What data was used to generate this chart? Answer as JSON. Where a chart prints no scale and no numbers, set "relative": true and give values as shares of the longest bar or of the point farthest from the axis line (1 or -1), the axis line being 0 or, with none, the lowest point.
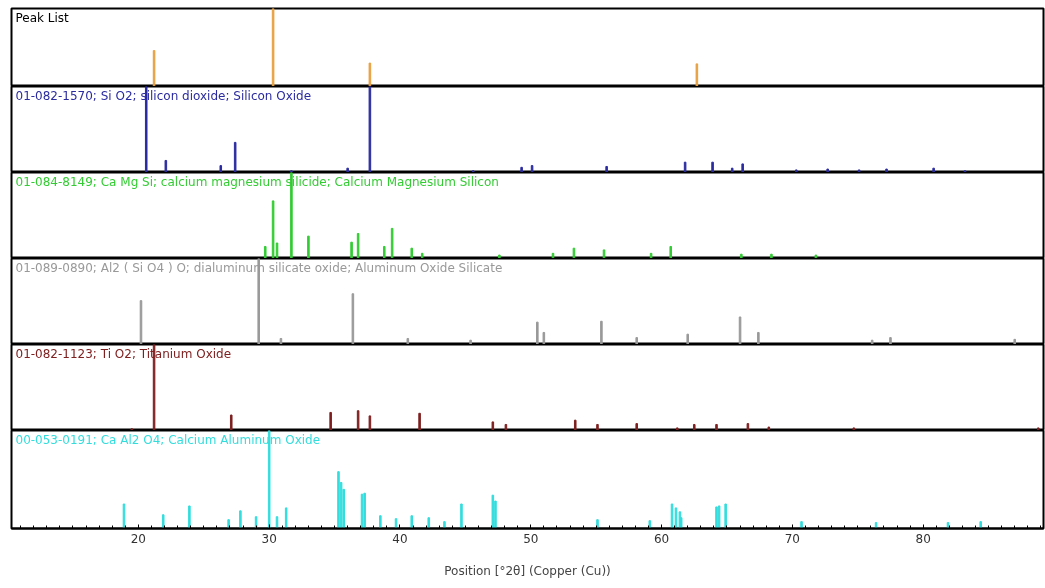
{
  "chart_data": [
    {
      "type": "bar",
      "title": "Peak List",
      "relative": true,
      "xlim": [
        10.3,
        89.2
      ],
      "xticks": [
        20,
        30,
        40,
        50,
        60,
        70,
        80
      ],
      "tick_labels": false,
      "x": [
        21.2,
        30.3,
        37.7,
        62.7
      ],
      "series": [
        {
          "color": "#e8a040",
          "values": [
            0.46,
            1,
            0.3,
            0.29
          ]
        }
      ]
    },
    {
      "type": "bar",
      "title": "01-082-1570; Si O2; silicon dioxide; Silicon Oxide",
      "relative": true,
      "xlim": [
        10.3,
        89.2
      ],
      "xticks": [
        20,
        30,
        40,
        50,
        60,
        70,
        80
      ],
      "tick_labels": false,
      "x": [
        20.6,
        22.1,
        26.3,
        27.4,
        31.7,
        36.0,
        37.7,
        45.6,
        49.3,
        50.1,
        55.8,
        61.8,
        63.9,
        65.4,
        66.2,
        70.3,
        72.7,
        75.1,
        77.2,
        80.8,
        83.2
      ],
      "series": [
        {
          "color": "#2b2ba0",
          "values": [
            1,
            0.14,
            0.08,
            0.35,
            0.02,
            0.05,
            1,
            0.02,
            0.06,
            0.08,
            0.07,
            0.12,
            0.12,
            0.05,
            0.1,
            0.03,
            0.04,
            0.03,
            0.04,
            0.05,
            0.02
          ]
        }
      ]
    },
    {
      "type": "bar",
      "title": "01-084-8149; Ca Mg Si; calcium magnesium silicide; Calcium Magnesium Silicon",
      "relative": true,
      "xlim": [
        10.3,
        89.2
      ],
      "xticks": [
        20,
        30,
        40,
        50,
        60,
        70,
        80
      ],
      "tick_labels": false,
      "x": [
        29.7,
        30.3,
        30.6,
        31.7,
        33.0,
        36.3,
        36.8,
        38.8,
        39.4,
        40.9,
        41.7,
        47.6,
        51.7,
        53.3,
        55.6,
        59.2,
        60.7,
        66.1,
        68.4,
        71.8
      ],
      "series": [
        {
          "color": "#33cc33",
          "values": [
            0.14,
            0.67,
            0.18,
            1,
            0.26,
            0.19,
            0.29,
            0.14,
            0.35,
            0.12,
            0.06,
            0.04,
            0.06,
            0.12,
            0.1,
            0.06,
            0.14,
            0.05,
            0.05,
            0.04
          ]
        }
      ]
    },
    {
      "type": "bar",
      "title": "01-089-0890; Al2 ( Si O4 ) O; dialuminum silicate oxide; Aluminum Oxide Silicate",
      "relative": true,
      "xlim": [
        10.3,
        89.2
      ],
      "xticks": [
        20,
        30,
        40,
        50,
        60,
        70,
        80
      ],
      "tick_labels": false,
      "x": [
        20.2,
        29.2,
        30.9,
        36.4,
        40.6,
        45.4,
        50.5,
        51.0,
        55.4,
        58.1,
        62.0,
        66.0,
        67.4,
        76.1,
        77.5,
        87.0
      ],
      "series": [
        {
          "color": "#999999",
          "values": [
            0.51,
            1,
            0.07,
            0.59,
            0.07,
            0.05,
            0.26,
            0.14,
            0.27,
            0.08,
            0.12,
            0.32,
            0.14,
            0.05,
            0.08,
            0.06
          ]
        }
      ]
    },
    {
      "type": "bar",
      "title": "01-082-1123; Ti O2; Titanium Oxide",
      "relative": true,
      "xlim": [
        10.3,
        89.2
      ],
      "xticks": [
        20,
        30,
        40,
        50,
        60,
        70,
        80
      ],
      "tick_labels": false,
      "x": [
        19.5,
        21.2,
        27.1,
        34.7,
        36.8,
        37.7,
        41.5,
        47.1,
        48.1,
        53.4,
        55.1,
        58.1,
        61.2,
        62.5,
        64.2,
        66.6,
        68.2,
        74.7,
        88.8
      ],
      "series": [
        {
          "color": "#7f2020",
          "values": [
            0.02,
            1,
            0.18,
            0.21,
            0.23,
            0.17,
            0.2,
            0.1,
            0.07,
            0.12,
            0.07,
            0.08,
            0.03,
            0.07,
            0.07,
            0.08,
            0.04,
            0.03,
            0.03
          ]
        }
      ]
    },
    {
      "type": "bar",
      "title": "00-053-0191; Ca Al2 O4; Calcium Aluminum Oxide",
      "xlabel": "Position [°2θ] (Copper (Cu))",
      "relative": true,
      "xlim": [
        10.3,
        89.2
      ],
      "xticks": [
        20,
        30,
        40,
        50,
        60,
        70,
        80
      ],
      "tick_labels": "x",
      "x": [
        18.9,
        21.9,
        23.9,
        26.9,
        27.8,
        29.0,
        30.0,
        30.6,
        31.3,
        35.3,
        35.5,
        35.7,
        37.1,
        37.3,
        38.5,
        39.7,
        40.9,
        42.2,
        43.4,
        44.7,
        47.1,
        47.3,
        55.1,
        59.1,
        60.8,
        61.1,
        61.4,
        61.5,
        64.2,
        64.4,
        64.9,
        70.7,
        76.4,
        81.9,
        84.4
      ],
      "series": [
        {
          "color": "#33dddd",
          "values": [
            0.25,
            0.14,
            0.23,
            0.09,
            0.18,
            0.12,
            1,
            0.12,
            0.21,
            0.58,
            0.47,
            0.4,
            0.35,
            0.36,
            0.13,
            0.1,
            0.13,
            0.11,
            0.07,
            0.25,
            0.34,
            0.28,
            0.09,
            0.08,
            0.25,
            0.21,
            0.17,
            0.11,
            0.22,
            0.23,
            0.25,
            0.07,
            0.06,
            0.06,
            0.07
          ]
        }
      ]
    }
  ]
}
